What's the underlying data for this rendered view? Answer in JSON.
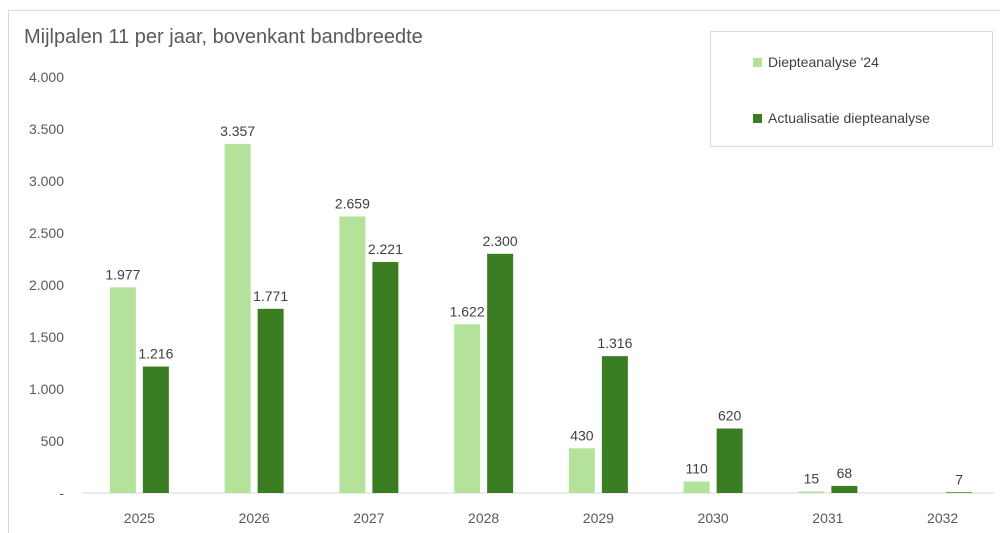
{
  "chart_data": {
    "type": "bar",
    "title": "Mijlpalen 11 per jaar, bovenkant bandbreedte",
    "categories": [
      "2025",
      "2026",
      "2027",
      "2028",
      "2029",
      "2030",
      "2031",
      "2032"
    ],
    "series": [
      {
        "name": "Diepteanalyse '24",
        "color": "#b5e29a",
        "values": [
          1977,
          3357,
          2659,
          1622,
          430,
          110,
          15,
          null
        ],
        "labels": [
          "1.977",
          "3.357",
          "2.659",
          "1.622",
          "430",
          "110",
          "15",
          ""
        ]
      },
      {
        "name": "Actualisatie diepteanalyse",
        "color": "#3a7d22",
        "values": [
          1216,
          1771,
          2221,
          2300,
          1316,
          620,
          68,
          7
        ],
        "labels": [
          "1.216",
          "1.771",
          "2.221",
          "2.300",
          "1.316",
          "620",
          "68",
          "7"
        ]
      }
    ],
    "ylim": [
      0,
      4000
    ],
    "yticks": [
      0,
      500,
      1000,
      1500,
      2000,
      2500,
      3000,
      3500,
      4000
    ],
    "ytick_labels": [
      "-",
      "500",
      "1.000",
      "1.500",
      "2.000",
      "2.500",
      "3.000",
      "3.500",
      "4.000"
    ],
    "xlabel": "",
    "ylabel": "",
    "grid": false,
    "legend": "top-right"
  }
}
